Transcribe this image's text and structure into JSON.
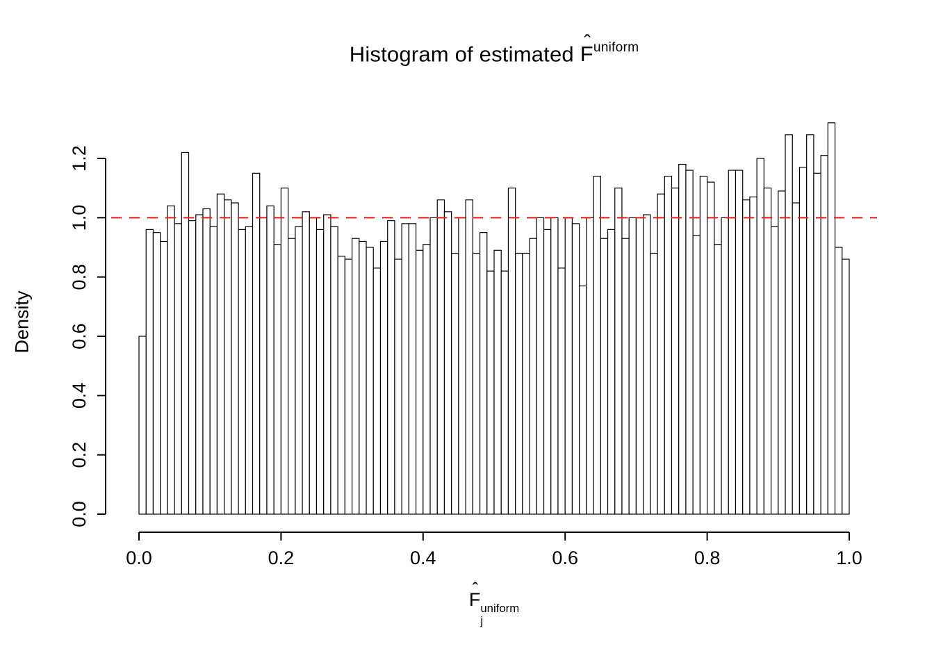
{
  "title": {
    "prefix": "Histogram of estimated ",
    "hat": "ˆ",
    "symbol": "F",
    "sup": "uniform"
  },
  "xlabel": {
    "hat": "ˆ",
    "symbol": "F",
    "sub": "j",
    "sup": "uniform"
  },
  "chart_data": {
    "type": "bar",
    "subtype": "histogram",
    "title": "Histogram of estimated F̂^uniform",
    "xlabel": "F̂_j^uniform",
    "ylabel": "Density",
    "grid": false,
    "legend": null,
    "xlim": [
      0,
      1
    ],
    "ylim": [
      0,
      1.2
    ],
    "xticks": [
      "0.0",
      "0.2",
      "0.4",
      "0.6",
      "0.8",
      "1.0"
    ],
    "yticks": [
      "0.0",
      "0.2",
      "0.4",
      "0.6",
      "0.8",
      "1.0",
      "1.2"
    ],
    "bins": {
      "start": 0,
      "width": 0.01,
      "count": 100
    },
    "values": [
      0.6,
      0.96,
      0.95,
      0.92,
      1.04,
      0.98,
      1.22,
      0.99,
      1.01,
      1.03,
      0.97,
      1.08,
      1.06,
      1.05,
      0.96,
      0.97,
      1.15,
      1.0,
      1.04,
      0.91,
      1.1,
      0.93,
      0.97,
      1.02,
      1.0,
      0.96,
      1.01,
      0.97,
      0.87,
      0.86,
      0.93,
      0.92,
      0.9,
      0.83,
      0.92,
      0.99,
      0.86,
      0.98,
      0.98,
      0.89,
      0.91,
      1.0,
      1.06,
      1.02,
      0.88,
      1.0,
      1.06,
      0.88,
      0.95,
      0.82,
      0.89,
      0.82,
      1.1,
      0.88,
      0.88,
      0.93,
      1.0,
      0.96,
      1.0,
      0.83,
      1.0,
      0.98,
      0.77,
      1.0,
      1.14,
      0.93,
      0.96,
      1.1,
      0.93,
      1.0,
      1.0,
      1.01,
      0.88,
      1.08,
      1.14,
      1.1,
      1.18,
      1.16,
      0.94,
      1.14,
      1.12,
      0.91,
      1.0,
      1.16,
      1.16,
      1.06,
      1.07,
      1.2,
      1.1,
      0.97,
      1.09,
      1.28,
      1.05,
      1.17,
      1.28,
      1.15,
      1.21,
      1.32,
      0.9,
      0.86
    ],
    "bar_fill": "#ffffff",
    "bar_stroke": "#000000",
    "axis_color": "#000000",
    "reference_line": {
      "y": 1.0,
      "style": "dashed",
      "color": "#ee2222"
    }
  }
}
